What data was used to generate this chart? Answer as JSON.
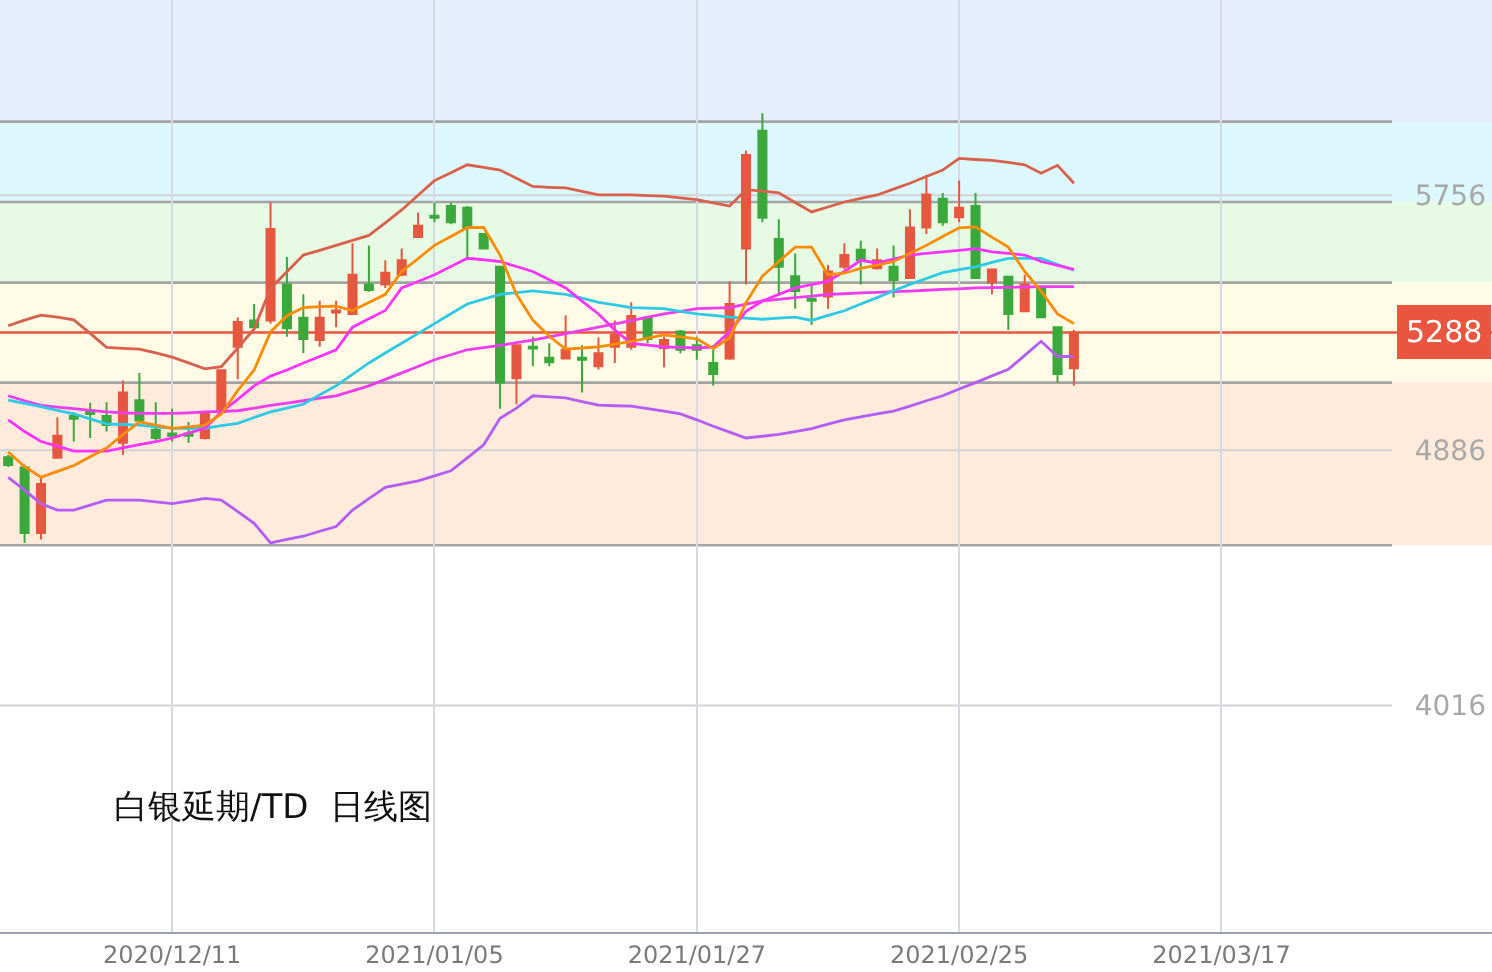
{
  "chart_data": {
    "type": "candlestick",
    "title": "白银延期/TD  日线图",
    "categories": [
      null,
      null,
      null,
      null,
      null,
      null,
      null,
      null,
      null,
      null,
      "2020/12/11",
      null,
      null,
      null,
      null,
      null,
      null,
      null,
      null,
      null,
      null,
      null,
      null,
      null,
      null,
      null,
      "2021/01/05",
      null,
      null,
      null,
      null,
      null,
      null,
      null,
      null,
      null,
      null,
      null,
      null,
      null,
      null,
      null,
      "2021/01/27",
      null,
      null,
      null,
      null,
      null,
      null,
      null,
      null,
      null,
      null,
      null,
      null,
      null,
      null,
      null,
      "2021/02/25",
      null,
      null,
      null,
      null,
      null,
      null,
      null,
      null,
      null,
      null,
      null,
      null,
      null,
      null,
      null,
      "2021/03/17",
      null,
      null,
      null,
      null,
      null,
      null,
      null,
      null,
      null,
      null,
      null,
      null,
      null,
      null,
      null,
      null
    ],
    "ohlc": [
      [
        4862,
        4870,
        4829,
        4836
      ],
      [
        4827,
        4838,
        4570,
        4604
      ],
      [
        4604,
        4798,
        4582,
        4771
      ],
      [
        4861,
        4999,
        4861,
        4936
      ],
      [
        5003,
        5017,
        4916,
        4994
      ],
      [
        5017,
        5048,
        4928,
        5010
      ],
      [
        5003,
        5050,
        4950,
        4972
      ],
      [
        4912,
        5124,
        4871,
        5083
      ],
      [
        5057,
        5150,
        4983,
        4988
      ],
      [
        4956,
        5050,
        4921,
        4928
      ],
      [
        4943,
        5028,
        4916,
        4936
      ],
      [
        4943,
        4983,
        4912,
        4936
      ],
      [
        4928,
        5021,
        4923,
        5017
      ],
      [
        5017,
        5159,
        5017,
        5159
      ],
      [
        5239,
        5340,
        5128,
        5324
      ],
      [
        5329,
        5385,
        5306,
        5306
      ],
      [
        5329,
        5731,
        5318,
        5641
      ],
      [
        5452,
        5545,
        5273,
        5302
      ],
      [
        5338,
        5418,
        5217,
        5266
      ],
      [
        5262,
        5396,
        5239,
        5338
      ],
      [
        5356,
        5396,
        5306,
        5363
      ],
      [
        5351,
        5592,
        5351,
        5485
      ],
      [
        5452,
        5585,
        5427,
        5433
      ],
      [
        5452,
        5534,
        5440,
        5492
      ],
      [
        5485,
        5574,
        5480,
        5534
      ],
      [
        5614,
        5697,
        5614,
        5652
      ],
      [
        5686,
        5731,
        5664,
        5679
      ],
      [
        5719,
        5731,
        5657,
        5664
      ],
      [
        5713,
        5719,
        5541,
        5648
      ],
      [
        5624,
        5624,
        5574,
        5574
      ],
      [
        5512,
        5512,
        5028,
        5117
      ],
      [
        5132,
        5244,
        5043,
        5244
      ],
      [
        5239,
        5273,
        5173,
        5233
      ],
      [
        5202,
        5251,
        5173,
        5186
      ],
      [
        5199,
        5347,
        5199,
        5229
      ],
      [
        5202,
        5244,
        5083,
        5195
      ],
      [
        5173,
        5271,
        5162,
        5217
      ],
      [
        5239,
        5329,
        5184,
        5280
      ],
      [
        5239,
        5391,
        5229,
        5344
      ],
      [
        5338,
        5338,
        5251,
        5266
      ],
      [
        5235,
        5273,
        5169,
        5262
      ],
      [
        5291,
        5296,
        5217,
        5229
      ],
      [
        5244,
        5273,
        5195,
        5229
      ],
      [
        5184,
        5244,
        5106,
        5146
      ],
      [
        5199,
        5463,
        5195,
        5385
      ],
      [
        5574,
        5909,
        5452,
        5893
      ],
      [
        5976,
        6036,
        5664,
        5679
      ],
      [
        5607,
        5674,
        5418,
        5512
      ],
      [
        5480,
        5557,
        5369,
        5429
      ],
      [
        5403,
        5452,
        5313,
        5396
      ],
      [
        5411,
        5519,
        5369,
        5496
      ],
      [
        5512,
        5592,
        5503,
        5552
      ],
      [
        5570,
        5601,
        5452,
        5534
      ],
      [
        5507,
        5574,
        5503,
        5534
      ],
      [
        5512,
        5585,
        5407,
        5467
      ],
      [
        5474,
        5708,
        5474,
        5646
      ],
      [
        5646,
        5824,
        5624,
        5759
      ],
      [
        5744,
        5764,
        5652,
        5664
      ],
      [
        5681,
        5806,
        5664,
        5713
      ],
      [
        5719,
        5764,
        5474,
        5474
      ],
      [
        5458,
        5503,
        5418,
        5503
      ],
      [
        5478,
        5478,
        5296,
        5351
      ],
      [
        5360,
        5485,
        5360,
        5452
      ],
      [
        5436,
        5436,
        5340,
        5340
      ],
      [
        5306,
        5306,
        5117,
        5146
      ],
      [
        5166,
        5296,
        5106,
        5288
      ],
      null,
      null,
      null,
      null,
      null,
      null,
      null,
      null,
      null,
      null,
      null,
      null,
      null,
      null,
      null,
      null,
      null,
      null,
      null,
      null,
      null,
      null,
      null,
      null,
      null
    ],
    "colors": [
      "#3aa83a",
      "#3aa83a",
      "#e5583f",
      "#e5583f",
      "#3aa83a",
      "#3aa83a",
      "#3aa83a",
      "#e5583f",
      "#3aa83a",
      "#3aa83a",
      "#3aa83a",
      "#3aa83a",
      "#e5583f",
      "#e5583f",
      "#e5583f",
      "#3aa83a",
      "#e5583f",
      "#3aa83a",
      "#3aa83a",
      "#e5583f",
      "#e5583f",
      "#e5583f",
      "#3aa83a",
      "#e5583f",
      "#e5583f",
      "#e5583f",
      "#3aa83a",
      "#3aa83a",
      "#3aa83a",
      "#3aa83a",
      "#3aa83a",
      "#e5583f",
      "#3aa83a",
      "#3aa83a",
      "#e5583f",
      "#3aa83a",
      "#e5583f",
      "#e5583f",
      "#e5583f",
      "#3aa83a",
      "#e5583f",
      "#3aa83a",
      "#3aa83a",
      "#3aa83a",
      "#e5583f",
      "#e5583f",
      "#3aa83a",
      "#3aa83a",
      "#3aa83a",
      "#3aa83a",
      "#e5583f",
      "#e5583f",
      "#3aa83a",
      "#e5583f",
      "#3aa83a",
      "#e5583f",
      "#e5583f",
      "#3aa83a",
      "#e5583f",
      "#3aa83a",
      "#e5583f",
      "#3aa83a",
      "#e5583f",
      "#3aa83a",
      "#3aa83a",
      "#e5583f",
      null,
      null,
      null,
      null,
      null,
      null,
      null,
      null,
      null,
      null,
      null,
      null,
      null,
      null,
      null,
      null,
      null,
      null,
      null,
      null,
      null,
      null,
      null,
      null,
      null
    ],
    "series": [
      {
        "type": "line",
        "color": "#d9604a",
        "values": [
          5311,
          5330,
          5347,
          5340,
          5331,
          5285,
          5237,
          5234,
          5231,
          5218,
          5204,
          5184,
          5164,
          5171,
          5235,
          5300,
          5438,
          5495,
          5552,
          5568,
          5585,
          5602,
          5619,
          5662,
          5706,
          5756,
          5806,
          5833,
          5860,
          5851,
          5842,
          5814,
          5786,
          5783,
          5781,
          5769,
          5757,
          5757,
          5757,
          5755,
          5753,
          5747,
          5741,
          5730,
          5719,
          5775,
          5770,
          5764,
          5731,
          5699,
          5716,
          5733,
          5745,
          5757,
          5777,
          5797,
          5820,
          5842,
          5882,
          5878,
          5875,
          5868,
          5860,
          5831,
          5858,
          5797,
          null,
          null,
          null,
          null,
          null,
          null,
          null,
          null,
          null,
          null,
          null,
          null,
          null,
          null,
          null,
          null,
          null,
          null,
          null,
          null,
          null,
          null,
          null,
          null,
          null
        ]
      },
      {
        "type": "line",
        "color": "#b45cf5",
        "values": [
          4794,
          4750,
          4704,
          4682,
          4682,
          4699,
          4716,
          4716,
          4716,
          4710,
          4704,
          4713,
          4722,
          4716,
          4677,
          4637,
          4570,
          4582,
          4593,
          4610,
          4626,
          4682,
          4721,
          4760,
          4771,
          4782,
          4799,
          4816,
          4860,
          4905,
          4995,
          5030,
          5072,
          5068,
          5065,
          5052,
          5040,
          5038,
          5037,
          5028,
          5020,
          5010,
          4990,
          4968,
          4948,
          4928,
          4934,
          4940,
          4950,
          4960,
          4975,
          4990,
          5000,
          5010,
          5020,
          5037,
          5055,
          5072,
          5095,
          5117,
          5140,
          5162,
          5210,
          5258,
          5206,
          5206,
          null,
          null,
          null,
          null,
          null,
          null,
          null,
          null,
          null,
          null,
          null,
          null,
          null,
          null,
          null,
          null,
          null,
          null,
          null,
          null,
          null,
          null,
          null,
          null,
          null
        ]
      },
      {
        "type": "line",
        "color": "#ee3cee",
        "values": [
          5072,
          5055,
          5039,
          5033,
          5028,
          5022,
          5017,
          5014,
          5012,
          5012,
          5012,
          5014,
          5017,
          5019,
          5021,
          5030,
          5039,
          5047,
          5055,
          5064,
          5072,
          5089,
          5106,
          5128,
          5150,
          5172,
          5195,
          5212,
          5229,
          5236,
          5244,
          5253,
          5262,
          5273,
          5284,
          5295,
          5306,
          5317,
          5328,
          5340,
          5351,
          5360,
          5369,
          5371,
          5373,
          5385,
          5396,
          5401,
          5407,
          5412,
          5418,
          5420,
          5423,
          5425,
          5427,
          5429,
          5432,
          5435,
          5437,
          5440,
          5441,
          5442,
          5443,
          5444,
          5444,
          5444,
          null,
          null,
          null,
          null,
          null,
          null,
          null,
          null,
          null,
          null,
          null,
          null,
          null,
          null,
          null,
          null,
          null,
          null,
          null,
          null,
          null,
          null,
          null,
          null,
          null
        ]
      },
      {
        "type": "line",
        "color": "#2ec9e6",
        "values": [
          5057,
          5046,
          5035,
          5022,
          5010,
          4993,
          4976,
          4974,
          4972,
          4966,
          4961,
          4961,
          4961,
          4970,
          4978,
          4998,
          5017,
          5030,
          5043,
          5075,
          5106,
          5145,
          5184,
          5218,
          5251,
          5285,
          5318,
          5352,
          5385,
          5402,
          5418,
          5424,
          5430,
          5424,
          5418,
          5405,
          5391,
          5382,
          5373,
          5371,
          5369,
          5360,
          5351,
          5346,
          5340,
          5337,
          5333,
          5337,
          5340,
          5329,
          5346,
          5362,
          5385,
          5407,
          5430,
          5452,
          5472,
          5492,
          5502,
          5512,
          5527,
          5541,
          5541,
          5541,
          5520,
          5500,
          null,
          null,
          null,
          null,
          null,
          null,
          null,
          null,
          null,
          null,
          null,
          null,
          null,
          null,
          null,
          null,
          null,
          null,
          null,
          null,
          null,
          null,
          null,
          null,
          null
        ]
      },
      {
        "type": "line",
        "color": "#ff33ff",
        "values": [
          4990,
          4950,
          4916,
          4900,
          4883,
          4883,
          4883,
          4894,
          4905,
          4916,
          4928,
          4945,
          4961,
          5017,
          5060,
          5106,
          5139,
          5160,
          5184,
          5206,
          5229,
          5306,
          5335,
          5363,
          5440,
          5462,
          5485,
          5513,
          5541,
          5536,
          5530,
          5513,
          5496,
          5468,
          5440,
          5395,
          5351,
          5296,
          5251,
          5245,
          5239,
          5237,
          5235,
          5239,
          5290,
          5360,
          5395,
          5418,
          5440,
          5451,
          5463,
          5496,
          5534,
          5525,
          5538,
          5552,
          5558,
          5563,
          5568,
          5574,
          5563,
          5558,
          5552,
          5530,
          5517,
          5503,
          null,
          null,
          null,
          null,
          null,
          null,
          null,
          null,
          null,
          null,
          null,
          null,
          null,
          null,
          null,
          null,
          null,
          null,
          null,
          null,
          null,
          null,
          null,
          null,
          null
        ]
      },
      {
        "type": "line",
        "color": "#ff8c00",
        "values": [
          4880,
          4830,
          4794,
          4814,
          4834,
          4864,
          4894,
          4940,
          4983,
          4972,
          4961,
          4966,
          4972,
          5010,
          5090,
          5160,
          5290,
          5345,
          5373,
          5376,
          5378,
          5363,
          5390,
          5418,
          5496,
          5540,
          5585,
          5615,
          5646,
          5646,
          5552,
          5418,
          5330,
          5275,
          5231,
          5235,
          5239,
          5248,
          5258,
          5269,
          5280,
          5273,
          5266,
          5233,
          5270,
          5390,
          5480,
          5530,
          5579,
          5579,
          5485,
          5490,
          5507,
          5518,
          5530,
          5557,
          5585,
          5615,
          5645,
          5648,
          5613,
          5579,
          5496,
          5429,
          5351,
          5318,
          null,
          null,
          null,
          null,
          null,
          null,
          null,
          null,
          null,
          null,
          null,
          null,
          null,
          null,
          null,
          null,
          null,
          null,
          null,
          null,
          null,
          null,
          null,
          null,
          null
        ]
      }
    ],
    "ylim": [
      3243,
      6422
    ],
    "yticks": [
      4016,
      4886,
      5756
    ],
    "grid": true,
    "bands": [
      {
        "axis": "y",
        "from": 6007,
        "to": 6422,
        "color": "#e6edfd"
      },
      {
        "axis": "y",
        "from": 5733,
        "to": 6007,
        "color": "#ddf8fc"
      },
      {
        "axis": "y",
        "from": 5458,
        "to": 5733,
        "color": "#e6fae4"
      },
      {
        "axis": "y",
        "from": 5117,
        "to": 5458,
        "color": "#fffbe7"
      },
      {
        "axis": "y",
        "from": 4562,
        "to": 5117,
        "color": "#feebdc"
      }
    ],
    "ref_lines": [
      {
        "axis": "y",
        "value": 6007,
        "color": "#a3a3a3"
      },
      {
        "axis": "y",
        "value": 5733,
        "color": "#a3a3a3"
      },
      {
        "axis": "y",
        "value": 5458,
        "color": "#a3a3a3"
      },
      {
        "axis": "y",
        "value": 5117,
        "color": "#a3a3a3"
      },
      {
        "axis": "y",
        "value": 4562,
        "color": "#a3a3a3"
      },
      {
        "axis": "y",
        "value": 5288,
        "label": "5288",
        "color": "#e9553f"
      }
    ]
  }
}
